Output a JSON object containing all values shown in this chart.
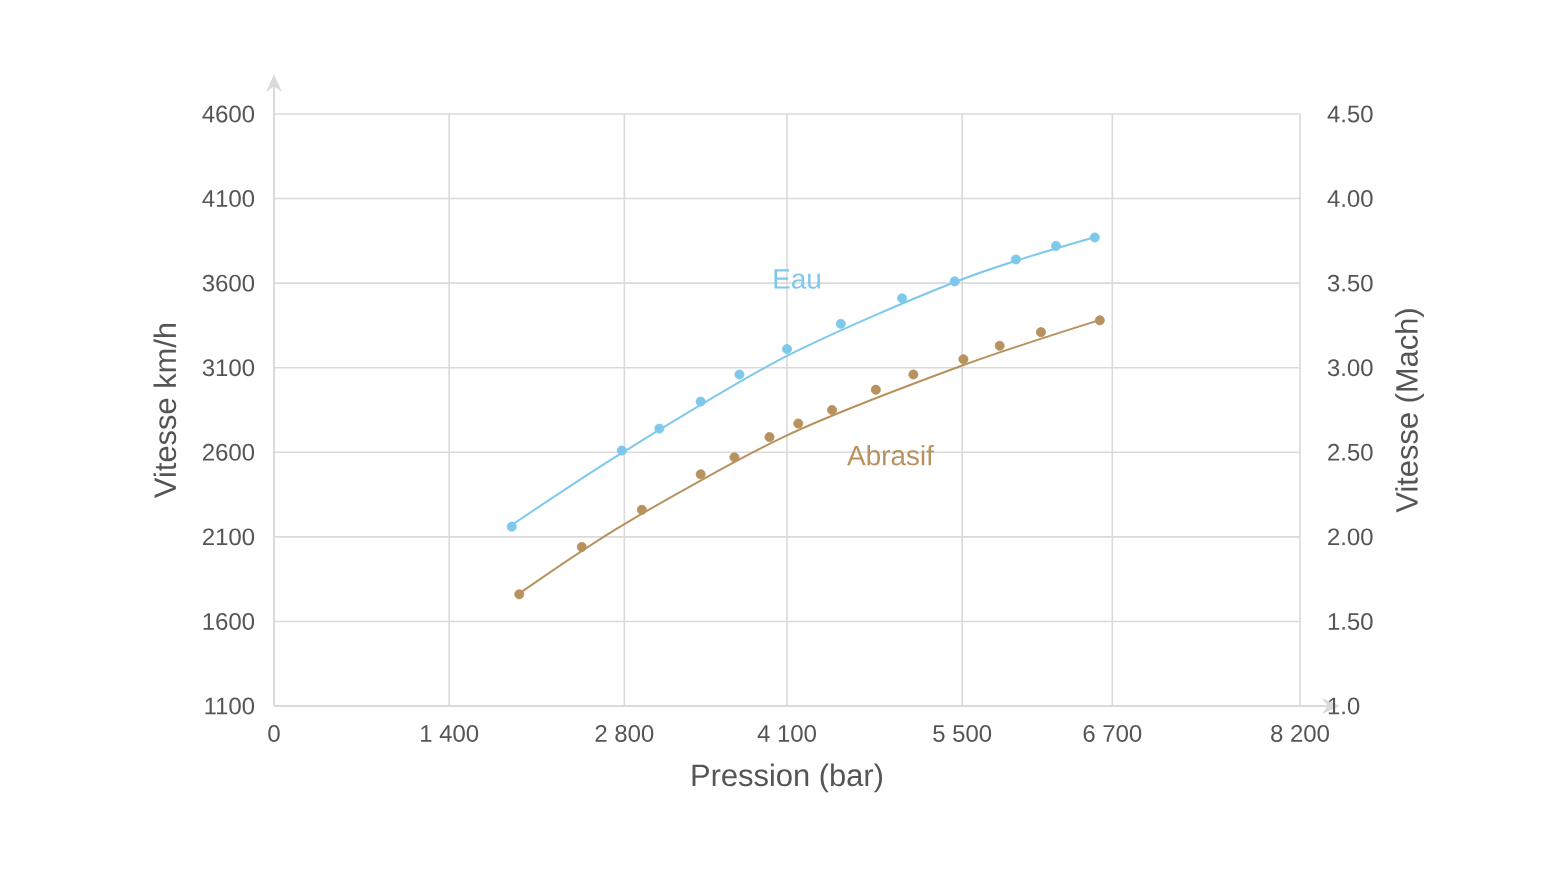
{
  "chart_data": {
    "type": "scatter",
    "xlabel": "Pression (bar)",
    "ylabel": "Vitesse km/h",
    "y2label": "Vitesse (Mach)",
    "xlim": [
      0,
      8200
    ],
    "xticks": [
      0,
      {
        "value": 1400,
        "label": "1 400"
      },
      {
        "value": 2800,
        "label": "2 800"
      },
      {
        "value": 4100,
        "label": "4 100"
      },
      {
        "value": 5500,
        "label": "5 500"
      },
      {
        "value": 6700,
        "label": "6 700"
      },
      {
        "value": 8200,
        "label": "8 200"
      }
    ],
    "ylim": [
      1100,
      4600
    ],
    "yticks": [
      1100,
      1600,
      2100,
      2600,
      3100,
      3600,
      4100,
      4600
    ],
    "y2lim": [
      1.0,
      4.5
    ],
    "y2ticks": [
      {
        "value": 1.0,
        "label": "1.0"
      },
      {
        "value": 1.5,
        "label": "1.50"
      },
      {
        "value": 2.0,
        "label": "2.00"
      },
      {
        "value": 2.5,
        "label": "2.50"
      },
      {
        "value": 3.0,
        "label": "3.00"
      },
      {
        "value": 3.5,
        "label": "3.50"
      },
      {
        "value": 4.0,
        "label": "4.00"
      },
      {
        "value": 4.5,
        "label": "4.50"
      }
    ],
    "grid": true,
    "marker": "circle",
    "series": [
      {
        "name": "Eau",
        "color": "#7ec8ec",
        "x": [
          1900,
          2780,
          3080,
          3410,
          3720,
          4100,
          4530,
          5020,
          5440,
          5930,
          6250,
          6560
        ],
        "values": [
          2160,
          2610,
          2740,
          2900,
          3060,
          3210,
          3360,
          3510,
          3610,
          3740,
          3820,
          3870
        ]
      },
      {
        "name": "Abrasif",
        "color": "#b8925e",
        "x": [
          1960,
          2460,
          2940,
          3410,
          3680,
          3960,
          4190,
          4460,
          4810,
          5110,
          5510,
          5800,
          6130,
          6600
        ],
        "values": [
          1760,
          2040,
          2260,
          2470,
          2570,
          2690,
          2770,
          2850,
          2970,
          3060,
          3150,
          3230,
          3310,
          3380
        ]
      },
      {
        "type": "line",
        "color": "#7ec8ec",
        "marker": "none",
        "x": [
          1900,
          2810,
          4100,
          5490,
          6550
        ],
        "values": [
          2170,
          2610,
          3170,
          3620,
          3870
        ]
      },
      {
        "type": "line",
        "color": "#b8925e",
        "marker": "none",
        "x": [
          1950,
          2810,
          4100,
          5490,
          6590
        ],
        "values": [
          1760,
          2180,
          2700,
          3110,
          3380
        ]
      }
    ]
  }
}
